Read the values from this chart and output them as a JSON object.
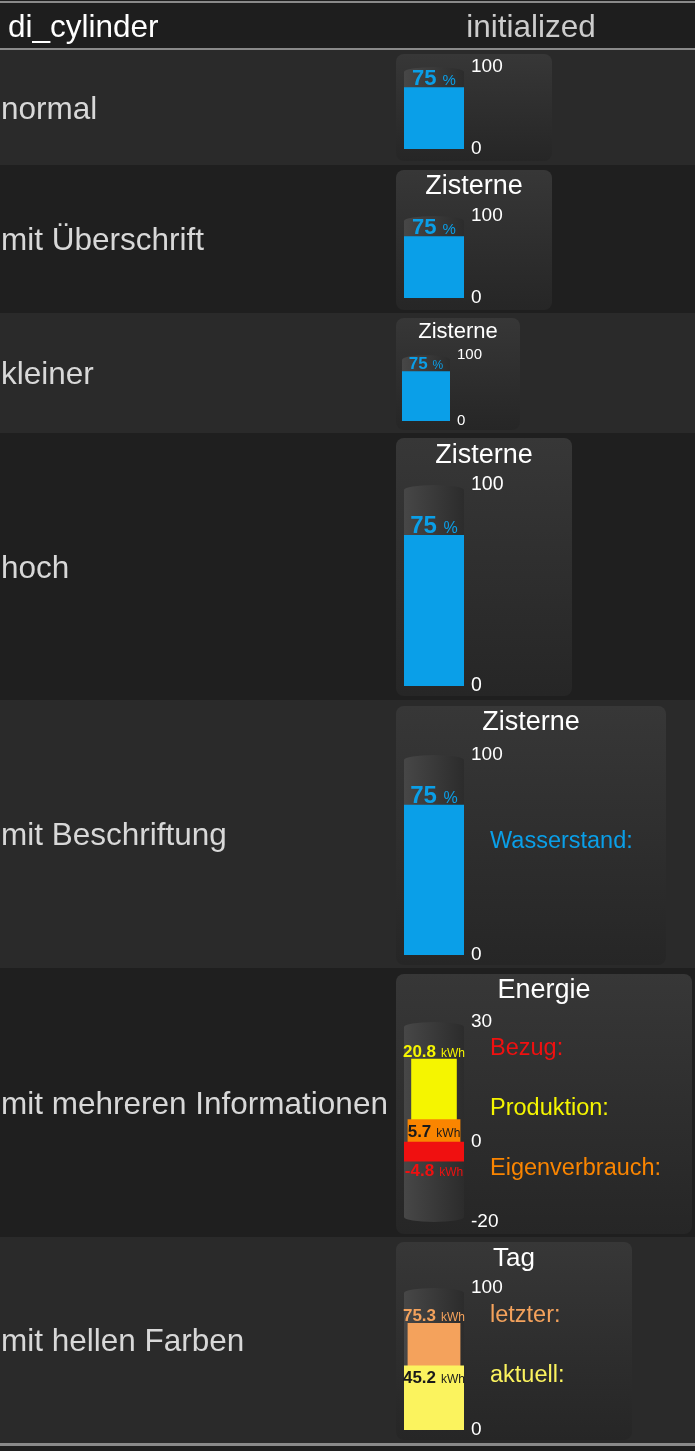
{
  "chart_data": [
    {
      "type": "other",
      "title": "di_cylinder",
      "subtitle": "initialized"
    },
    {
      "type": "bar",
      "annotations": [
        "normal"
      ],
      "categories": [
        null
      ],
      "series": [
        {
          "color": "#0a9fe8",
          "values": [
            75
          ],
          "value_labels": [
            "75 %"
          ]
        }
      ],
      "ylim": [
        0,
        100
      ],
      "yticks": [
        0,
        100
      ]
    },
    {
      "type": "bar",
      "title": "Zisterne",
      "annotations": [
        "mit Überschrift"
      ],
      "categories": [
        null
      ],
      "series": [
        {
          "color": "#0a9fe8",
          "values": [
            75
          ],
          "value_labels": [
            "75 %"
          ]
        }
      ],
      "ylim": [
        0,
        100
      ],
      "yticks": [
        0,
        100
      ]
    },
    {
      "type": "bar",
      "title": "Zisterne",
      "annotations": [
        "kleiner"
      ],
      "categories": [
        null
      ],
      "series": [
        {
          "color": "#0a9fe8",
          "values": [
            75
          ],
          "value_labels": [
            "75 %"
          ]
        }
      ],
      "ylim": [
        0,
        100
      ],
      "yticks": [
        0,
        100
      ]
    },
    {
      "type": "bar",
      "title": "Zisterne",
      "annotations": [
        "hoch"
      ],
      "categories": [
        null
      ],
      "series": [
        {
          "color": "#0a9fe8",
          "values": [
            75
          ],
          "value_labels": [
            "75 %"
          ]
        }
      ],
      "ylim": [
        0,
        100
      ],
      "yticks": [
        0,
        100
      ]
    },
    {
      "type": "bar",
      "title": "Zisterne",
      "annotations": [
        "mit Beschriftung"
      ],
      "categories": [
        null
      ],
      "series": [
        {
          "name": "Wasserstand:",
          "color": "#0a9fe8",
          "values": [
            75
          ],
          "value_labels": [
            "75 %"
          ]
        }
      ],
      "ylim": [
        0,
        100
      ],
      "yticks": [
        0,
        100
      ]
    },
    {
      "type": "bar",
      "title": "Energie",
      "annotations": [
        "mit mehreren Informationen"
      ],
      "categories": [
        null
      ],
      "series": [
        {
          "name": "Bezug:",
          "color": "#f01010",
          "values": [
            -4.8
          ],
          "value_labels": [
            "-4.8 kWh"
          ]
        },
        {
          "name": "Produktion:",
          "color": "#f5f500",
          "values": [
            20.8
          ],
          "value_labels": [
            "20.8 kWh"
          ]
        },
        {
          "name": "Eigenverbrauch:",
          "color": "#fa8500",
          "values": [
            5.7
          ],
          "value_labels": [
            "5.7 kWh"
          ]
        }
      ],
      "ylim": [
        -20,
        30
      ],
      "yticks": [
        -20,
        0,
        30
      ]
    },
    {
      "type": "bar",
      "title": "Tag",
      "annotations": [
        "mit hellen Farben"
      ],
      "categories": [
        null
      ],
      "series": [
        {
          "name": "letzter:",
          "color": "#f4a25c",
          "values": [
            75.3
          ],
          "value_labels": [
            "75.3 kWh"
          ]
        },
        {
          "name": "aktuell:",
          "color": "#fbf35e",
          "values": [
            45.2
          ],
          "value_labels": [
            "45.2 kWh"
          ]
        }
      ],
      "ylim": [
        0,
        100
      ],
      "yticks": [
        0,
        100
      ]
    }
  ]
}
